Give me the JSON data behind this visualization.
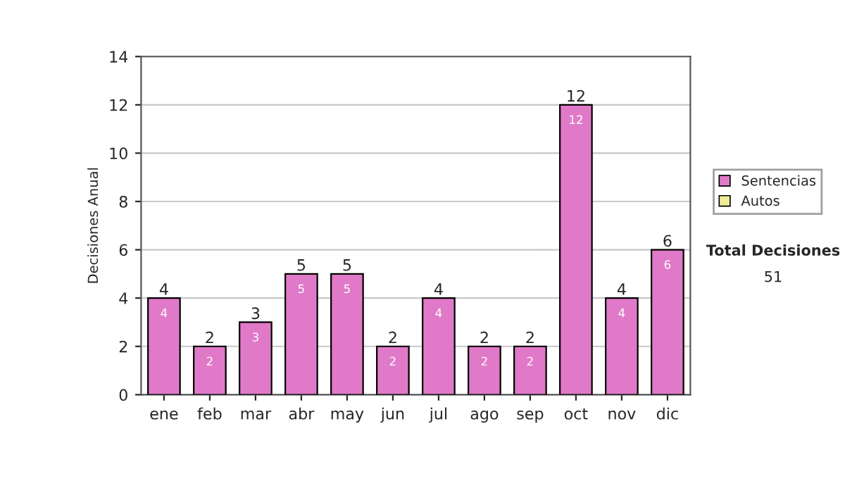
{
  "chart_data": {
    "type": "bar",
    "stacked": true,
    "ylabel": "Decisiones Anual",
    "categories": [
      "ene",
      "feb",
      "mar",
      "abr",
      "may",
      "jun",
      "jul",
      "ago",
      "sep",
      "oct",
      "nov",
      "dic"
    ],
    "series": [
      {
        "name": "Sentencias",
        "color": "#e07ac8",
        "values": [
          4,
          2,
          3,
          5,
          5,
          2,
          4,
          2,
          2,
          12,
          4,
          6
        ],
        "value_labels": [
          "4",
          "2",
          "3",
          "5",
          "5",
          "2",
          "4",
          "2",
          "2",
          "12",
          "4",
          "6"
        ]
      },
      {
        "name": "Autos",
        "color": "#eeee99",
        "values": [
          0,
          0,
          0,
          0,
          0,
          0,
          0,
          0,
          0,
          0,
          0,
          0
        ]
      }
    ],
    "totals": [
      "4",
      "2",
      "3",
      "5",
      "5",
      "2",
      "4",
      "2",
      "2",
      "12",
      "4",
      "6"
    ],
    "ylim": [
      0,
      14
    ],
    "yticks": [
      0,
      2,
      4,
      6,
      8,
      10,
      12,
      14
    ],
    "grid": "y",
    "legend": "right",
    "annotations": [
      "Total Decisiones",
      "51"
    ]
  }
}
